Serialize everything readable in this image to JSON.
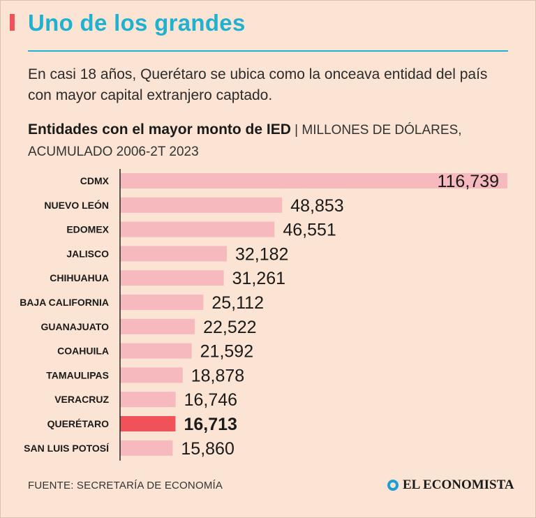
{
  "header": {
    "title": "Uno de los grandes",
    "intro": "En casi 18 años, Querétaro se ubica como la onceava entidad del país con mayor capital extranjero captado."
  },
  "chart_header": {
    "title_bold": "Entidades con el mayor monto de IED",
    "title_light": " | MILLONES DE DÓLARES, ACUMULADO 2006-2T 2023"
  },
  "chart_data": {
    "type": "bar",
    "orientation": "horizontal",
    "title": "Entidades con el mayor monto de IED",
    "subtitle": "MILLONES DE DÓLARES, ACUMULADO 2006-2T 2023",
    "categories": [
      "CDMX",
      "NUEVO LEÓN",
      "EDOMEX",
      "JALISCO",
      "CHIHUAHUA",
      "BAJA CALIFORNIA",
      "GUANAJUATO",
      "COAHUILA",
      "TAMAULIPAS",
      "VERACRUZ",
      "QUERÉTARO",
      "SAN LUIS POTOSÍ"
    ],
    "values": [
      116739,
      48853,
      46551,
      32182,
      31261,
      25112,
      22522,
      21592,
      18878,
      16746,
      16713,
      15860
    ],
    "labels": [
      "116,739",
      "48,853",
      "46,551",
      "32,182",
      "31,261",
      "25,112",
      "22,522",
      "21,592",
      "18,878",
      "16,746",
      "16,713",
      "15,860"
    ],
    "highlight": "QUERÉTARO",
    "colors": {
      "bar": "#f6b9be",
      "highlight": "#f0525a",
      "axis": "#222222"
    },
    "xlim": [
      0,
      116739
    ]
  },
  "footer": {
    "source": "FUENTE: SECRETARÍA DE ECONOMÍA",
    "brand": "EL ECONOMISTA"
  }
}
